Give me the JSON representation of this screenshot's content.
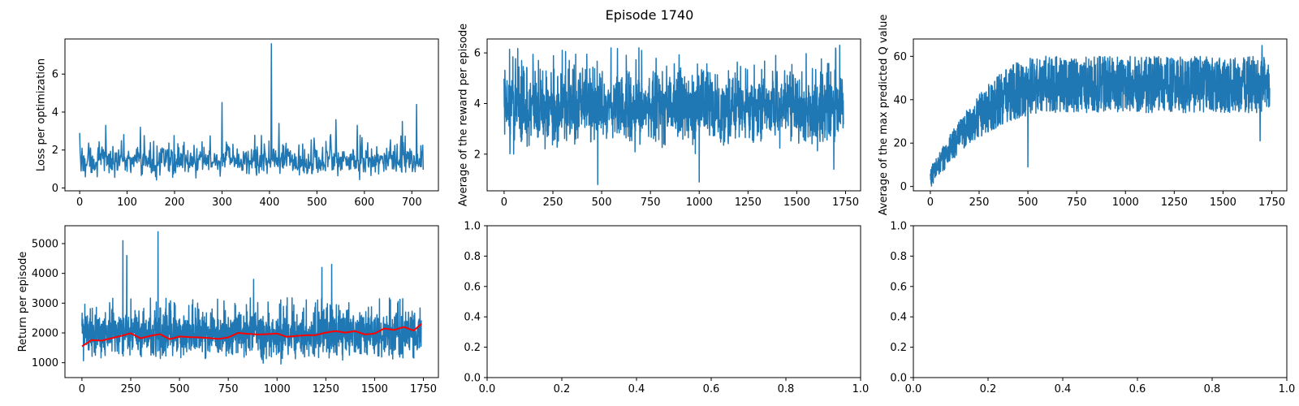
{
  "figure": {
    "title": "Episode 1740"
  },
  "colors": {
    "series_blue": "#1f77b4",
    "moving_average_red": "#ff0000",
    "axis": "#000000",
    "background": "#ffffff"
  },
  "chart_data": [
    {
      "id": "loss",
      "type": "line",
      "title": "",
      "xlabel": "",
      "ylabel": "Loss per optimization",
      "xlim": [
        -31,
        756
      ],
      "ylim": [
        -0.15,
        7.85
      ],
      "xticks": [
        0,
        100,
        200,
        300,
        400,
        500,
        600,
        700
      ],
      "yticks": [
        0,
        2,
        4,
        6
      ],
      "series": [
        {
          "name": "loss",
          "color": "#1f77b4",
          "n": 725,
          "x_start": 0,
          "x_step": 1,
          "baseline": 1.2,
          "band": [
            0.3,
            2.6
          ],
          "spikes": [
            {
              "x": 0,
              "y": 2.9
            },
            {
              "x": 55,
              "y": 3.3
            },
            {
              "x": 128,
              "y": 3.2
            },
            {
              "x": 300,
              "y": 4.5
            },
            {
              "x": 404,
              "y": 7.6
            },
            {
              "x": 420,
              "y": 3.4
            },
            {
              "x": 540,
              "y": 3.6
            },
            {
              "x": 585,
              "y": 3.3
            },
            {
              "x": 680,
              "y": 3.5
            },
            {
              "x": 710,
              "y": 4.4
            }
          ]
        }
      ]
    },
    {
      "id": "reward",
      "type": "line",
      "title": "",
      "xlabel": "",
      "ylabel": "Average of the reward per episode",
      "xlim": [
        -87,
        1827
      ],
      "ylim": [
        0.55,
        6.55
      ],
      "xticks": [
        0,
        250,
        500,
        750,
        1000,
        1250,
        1500,
        1750
      ],
      "yticks": [
        2,
        4,
        6
      ],
      "series": [
        {
          "name": "average reward",
          "color": "#1f77b4",
          "n": 1740,
          "x_start": 0,
          "x_step": 1,
          "baseline": 3.9,
          "band": [
            1.8,
            5.8
          ],
          "spikes": [
            {
              "x": 480,
              "y": 0.8
            },
            {
              "x": 1000,
              "y": 0.9
            },
            {
              "x": 1690,
              "y": 1.4
            },
            {
              "x": 1720,
              "y": 6.3
            }
          ]
        }
      ]
    },
    {
      "id": "maxq",
      "type": "line",
      "title": "",
      "xlabel": "",
      "ylabel": "Average of the max predicted Q value",
      "xlim": [
        -87,
        1827
      ],
      "ylim": [
        -2,
        68
      ],
      "xticks": [
        0,
        250,
        500,
        750,
        1000,
        1250,
        1500,
        1750
      ],
      "yticks": [
        0,
        20,
        40,
        60
      ],
      "series": [
        {
          "name": "max predicted Q",
          "color": "#1f77b4",
          "n": 1740,
          "x_start": 0,
          "x_step": 1,
          "trend": {
            "start": 4,
            "plateau": 47,
            "rise_to_x": 600
          },
          "band_halfwidth": 13,
          "spikes": [
            {
              "x": 500,
              "y": 9
            },
            {
              "x": 1690,
              "y": 21
            },
            {
              "x": 1700,
              "y": 65
            }
          ]
        }
      ]
    },
    {
      "id": "return",
      "type": "line",
      "title": "",
      "xlabel": "",
      "ylabel": "Return per episode",
      "xlim": [
        -87,
        1827
      ],
      "ylim": [
        500,
        5600
      ],
      "xticks": [
        0,
        250,
        500,
        750,
        1000,
        1250,
        1500,
        1750
      ],
      "yticks": [
        1000,
        2000,
        3000,
        4000,
        5000
      ],
      "series": [
        {
          "name": "return",
          "color": "#1f77b4",
          "n": 1740,
          "x_start": 0,
          "x_step": 1,
          "baseline": 1900,
          "band": [
            900,
            3000
          ],
          "spikes": [
            {
              "x": 210,
              "y": 5100
            },
            {
              "x": 230,
              "y": 4600
            },
            {
              "x": 390,
              "y": 5400
            },
            {
              "x": 880,
              "y": 3800
            },
            {
              "x": 1230,
              "y": 4200
            },
            {
              "x": 1280,
              "y": 4300
            }
          ]
        },
        {
          "name": "moving average",
          "color": "#ff0000",
          "points": [
            [
              0,
              1550
            ],
            [
              50,
              1760
            ],
            [
              100,
              1740
            ],
            [
              150,
              1820
            ],
            [
              200,
              1900
            ],
            [
              250,
              1990
            ],
            [
              300,
              1820
            ],
            [
              350,
              1900
            ],
            [
              400,
              1960
            ],
            [
              450,
              1790
            ],
            [
              500,
              1880
            ],
            [
              550,
              1860
            ],
            [
              600,
              1850
            ],
            [
              650,
              1830
            ],
            [
              700,
              1800
            ],
            [
              750,
              1850
            ],
            [
              800,
              2000
            ],
            [
              850,
              1970
            ],
            [
              900,
              1950
            ],
            [
              950,
              1960
            ],
            [
              1000,
              1980
            ],
            [
              1050,
              1870
            ],
            [
              1100,
              1900
            ],
            [
              1150,
              1920
            ],
            [
              1200,
              1930
            ],
            [
              1250,
              2010
            ],
            [
              1300,
              2060
            ],
            [
              1350,
              2010
            ],
            [
              1400,
              2060
            ],
            [
              1450,
              1950
            ],
            [
              1500,
              1980
            ],
            [
              1550,
              2150
            ],
            [
              1600,
              2100
            ],
            [
              1650,
              2200
            ],
            [
              1700,
              2080
            ],
            [
              1740,
              2300
            ]
          ]
        }
      ]
    },
    {
      "id": "empty1",
      "type": "line",
      "title": "",
      "xlabel": "",
      "ylabel": "",
      "xlim": [
        0,
        1
      ],
      "ylim": [
        0,
        1
      ],
      "xticks": [
        0.0,
        0.2,
        0.4,
        0.6,
        0.8,
        1.0
      ],
      "yticks": [
        0.0,
        0.2,
        0.4,
        0.6,
        0.8,
        1.0
      ],
      "series": []
    },
    {
      "id": "empty2",
      "type": "line",
      "title": "",
      "xlabel": "",
      "ylabel": "",
      "xlim": [
        0,
        1
      ],
      "ylim": [
        0,
        1
      ],
      "xticks": [
        0.0,
        0.2,
        0.4,
        0.6,
        0.8,
        1.0
      ],
      "yticks": [
        0.0,
        0.2,
        0.4,
        0.6,
        0.8,
        1.0
      ],
      "series": []
    }
  ]
}
